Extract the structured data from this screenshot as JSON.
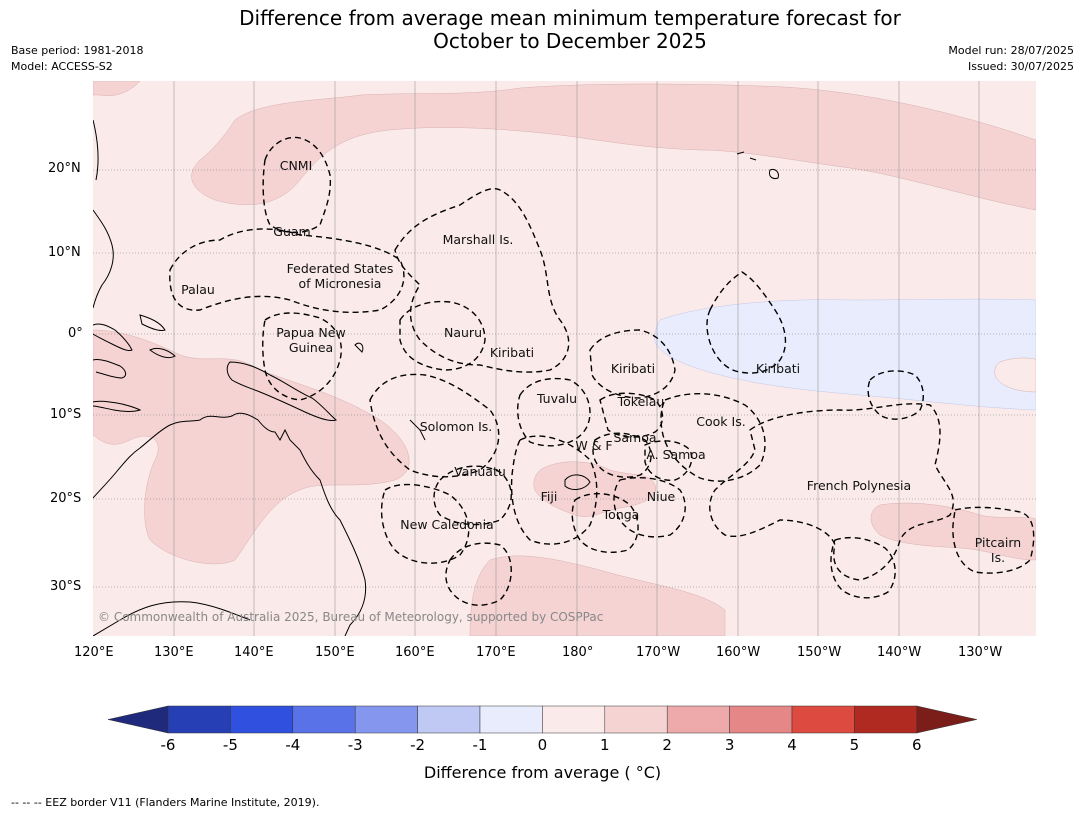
{
  "title": {
    "line1": "Difference from average mean minimum temperature forecast for",
    "line2": "October to December 2025"
  },
  "meta_left": {
    "base_period": "Base period: 1981-2018",
    "model": "Model: ACCESS-S2"
  },
  "meta_right": {
    "model_run": "Model run: 28/07/2025",
    "issued": "Issued: 30/07/2025"
  },
  "copyright": "© Commonwealth of Australia 2025, Bureau of Meteorology, supported by COSPPac",
  "axes": {
    "lat_labels": [
      "20°N",
      "10°N",
      "0°",
      "10°S",
      "20°S",
      "30°S"
    ],
    "lon_labels": [
      "120°E",
      "130°E",
      "140°E",
      "150°E",
      "160°E",
      "170°E",
      "180°",
      "170°W",
      "160°W",
      "150°W",
      "140°W",
      "130°W"
    ]
  },
  "regions": [
    {
      "name": "CNMI"
    },
    {
      "name": "Guam"
    },
    {
      "name": "Marshall Is."
    },
    {
      "name": "Federated States"
    },
    {
      "name": "of Micronesia"
    },
    {
      "name": "Palau"
    },
    {
      "name": "Papua New"
    },
    {
      "name": "Guinea"
    },
    {
      "name": "Nauru"
    },
    {
      "name": "Kiribati"
    },
    {
      "name": "Kiribati"
    },
    {
      "name": "Kiribati"
    },
    {
      "name": "Tuvalu"
    },
    {
      "name": "Tokelau"
    },
    {
      "name": "Cook Is."
    },
    {
      "name": "Solomon Is."
    },
    {
      "name": "Samoa"
    },
    {
      "name": "W & F"
    },
    {
      "name": "A. Samoa"
    },
    {
      "name": "Vanuatu"
    },
    {
      "name": "Fiji"
    },
    {
      "name": "Niue"
    },
    {
      "name": "French Polynesia"
    },
    {
      "name": "Tonga"
    },
    {
      "name": "New Caledonia"
    },
    {
      "name": "Pitcairn"
    },
    {
      "name": "Is."
    }
  ],
  "colorbar": {
    "label": "Difference from average ( °C)",
    "ticks": [
      "-6",
      "-5",
      "-4",
      "-3",
      "-2",
      "-1",
      "0",
      "1",
      "2",
      "3",
      "4",
      "5",
      "6"
    ],
    "colors": [
      "#1f2a7c",
      "#273fb5",
      "#3050e0",
      "#5a72e8",
      "#8596ee",
      "#c0c8f4",
      "#e8ecfc",
      "#fbeaea",
      "#f5d3d3",
      "#eeaaaa",
      "#e68787",
      "#dd4a40",
      "#b02a22",
      "#7b1d18"
    ]
  },
  "legend_footer": "-- -- -- EEZ border V11 (Flanders Marine Institute, 2019).",
  "fill_colors": {
    "background": "#fbeaea",
    "warm": "#f5d3d3",
    "cool": "#e8ecfc"
  }
}
